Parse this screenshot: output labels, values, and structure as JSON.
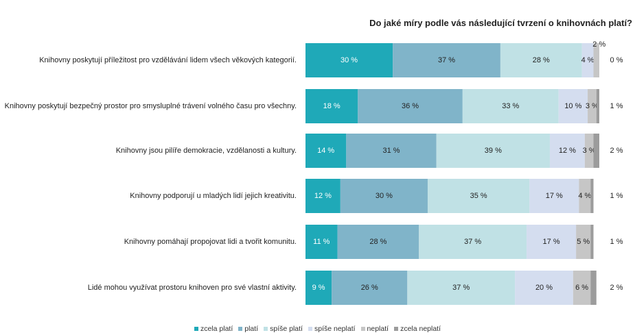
{
  "chart_data": {
    "type": "stacked-bar-horizontal",
    "title": "Do jaké míry podle vás následující tvrzení o knihovnách platí?",
    "categories": [
      "Knihovny poskytují příležitost pro vzdělávání lidem všech věkových kategorií.",
      "Knihovny poskytují bezpečný prostor pro smysluplné trávení volného času pro všechny.",
      "Knihovny jsou pilíře demokracie, vzdělanosti a kultury.",
      "Knihovny podporují u mladých lidí jejich kreativitu.",
      "Knihovny pomáhají propojovat lidi a tvořit komunitu.",
      "Lidé mohou využívat prostoru knihoven pro své vlastní aktivity."
    ],
    "series": [
      {
        "name": "zcela platí",
        "color": "#1fa9b8",
        "values": [
          30,
          18,
          14,
          12,
          11,
          9
        ],
        "value_labels": [
          "30 %",
          "18 %",
          "14 %",
          "12 %",
          "11 %",
          "9 %"
        ]
      },
      {
        "name": "platí",
        "color": "#80b4c9",
        "values": [
          37,
          36,
          31,
          30,
          28,
          26
        ],
        "value_labels": [
          "37 %",
          "36 %",
          "31 %",
          "30 %",
          "28 %",
          "26 %"
        ]
      },
      {
        "name": "spíše platí",
        "color": "#c0e1e5",
        "values": [
          28,
          33,
          39,
          35,
          37,
          37
        ],
        "value_labels": [
          "28 %",
          "33 %",
          "39 %",
          "35 %",
          "37 %",
          "37 %"
        ]
      },
      {
        "name": "spíše neplatí",
        "color": "#d4ddef",
        "values": [
          4,
          10,
          12,
          17,
          17,
          20
        ],
        "value_labels": [
          "4 %",
          "10 %",
          "12 %",
          "17 %",
          "17 %",
          "20 %"
        ]
      },
      {
        "name": "neplatí",
        "color": "#c6c6c6",
        "values": [
          2,
          3,
          3,
          4,
          5,
          6
        ],
        "value_labels": [
          "2 %",
          "3 %",
          "3 %",
          "4 %",
          "5 %",
          "6 %"
        ]
      },
      {
        "name": "zcela neplatí",
        "color": "#9c9c9c",
        "values": [
          0,
          1,
          2,
          1,
          1,
          2
        ],
        "value_labels": [
          "0 %",
          "1 %",
          "2 %",
          "1 %",
          "1 %",
          "2 %"
        ]
      }
    ]
  }
}
